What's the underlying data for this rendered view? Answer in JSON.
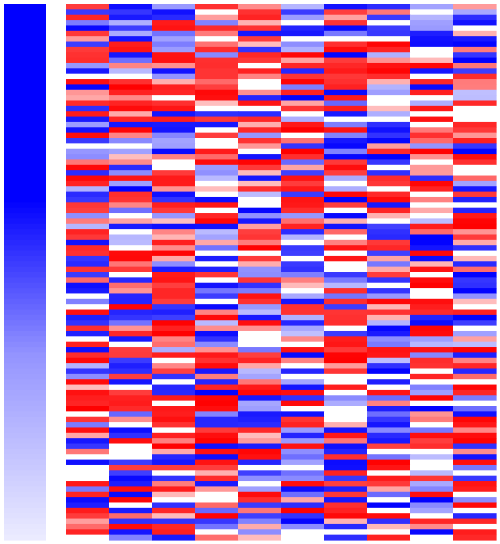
{
  "chart_data": {
    "type": "heatmap",
    "title": "",
    "xlabel": "",
    "ylabel": "",
    "n_columns": 10,
    "n_rows": 100,
    "value_range": [
      -1,
      1
    ],
    "color_scale": {
      "negative": "#0000ff",
      "zero": "#ffffff",
      "positive": "#ff0000"
    },
    "side_bar": {
      "values": [
        1.0,
        1.0,
        1.0,
        1.0,
        1.0,
        1.0,
        1.0,
        1.0,
        1.0,
        1.0,
        1.0,
        1.0,
        1.0,
        1.0,
        1.0,
        1.0,
        1.0,
        1.0,
        1.0,
        1.0,
        1.0,
        1.0,
        1.0,
        1.0,
        1.0,
        1.0,
        1.0,
        1.0,
        1.0,
        1.0,
        1.0,
        1.0,
        1.0,
        1.0,
        1.0,
        1.0,
        1.0,
        0.98,
        0.96,
        0.94,
        0.92,
        0.9,
        0.88,
        0.86,
        0.84,
        0.82,
        0.8,
        0.78,
        0.76,
        0.74,
        0.72,
        0.7,
        0.68,
        0.66,
        0.64,
        0.62,
        0.6,
        0.58,
        0.56,
        0.54,
        0.52,
        0.5,
        0.48,
        0.46,
        0.44,
        0.42,
        0.41,
        0.4,
        0.39,
        0.38,
        0.37,
        0.36,
        0.35,
        0.34,
        0.33,
        0.32,
        0.31,
        0.3,
        0.29,
        0.28,
        0.27,
        0.26,
        0.25,
        0.24,
        0.23,
        0.22,
        0.21,
        0.2,
        0.19,
        0.18,
        0.17,
        0.16,
        0.15,
        0.14,
        0.13,
        0.12,
        0.11,
        0.1,
        0.09,
        0.08
      ],
      "color": "#0000ff"
    },
    "seed": 1234567
  }
}
